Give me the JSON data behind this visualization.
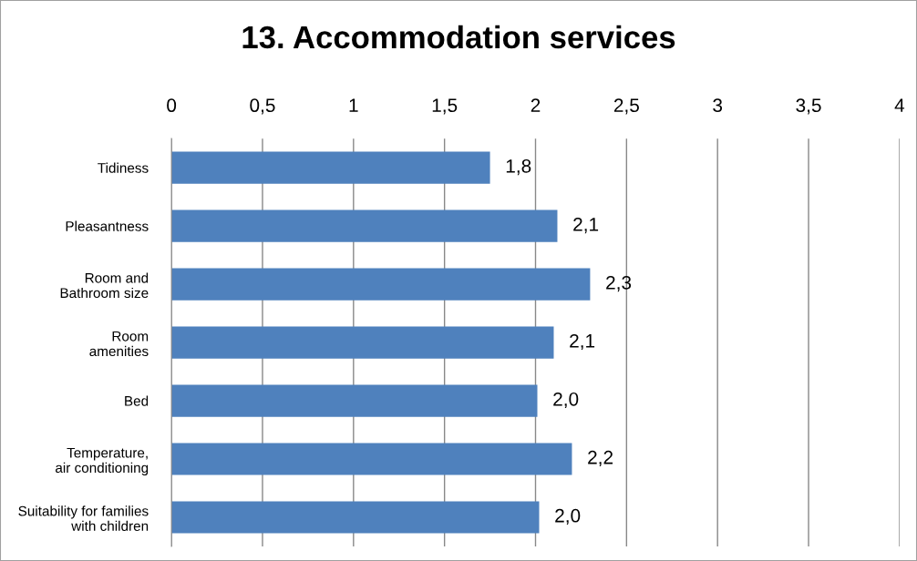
{
  "chart_data": {
    "type": "bar",
    "orientation": "horizontal",
    "title": "13. Accommodation services",
    "categories": [
      "Tidiness",
      "Pleasantness",
      "Room and\nBathroom size",
      "Room\namenities",
      "Bed",
      "Temperature,\nair conditioning",
      "Suitability for families\nwith children"
    ],
    "values": [
      1.75,
      2.12,
      2.3,
      2.1,
      2.01,
      2.2,
      2.02
    ],
    "value_labels": [
      "1,8",
      "2,1",
      "2,3",
      "2,1",
      "2,0",
      "2,2",
      "2,0"
    ],
    "color": "#4f81bd",
    "xlim": [
      0,
      4
    ],
    "xticks": [
      0,
      {
        "value": 0.5,
        "label": "0,5"
      },
      1,
      {
        "value": 1.5,
        "label": "1,5"
      },
      2,
      {
        "value": 2.5,
        "label": "2,5"
      },
      3,
      {
        "value": 3.5,
        "label": "3,5"
      },
      4
    ],
    "grid": "x",
    "legend": false
  }
}
